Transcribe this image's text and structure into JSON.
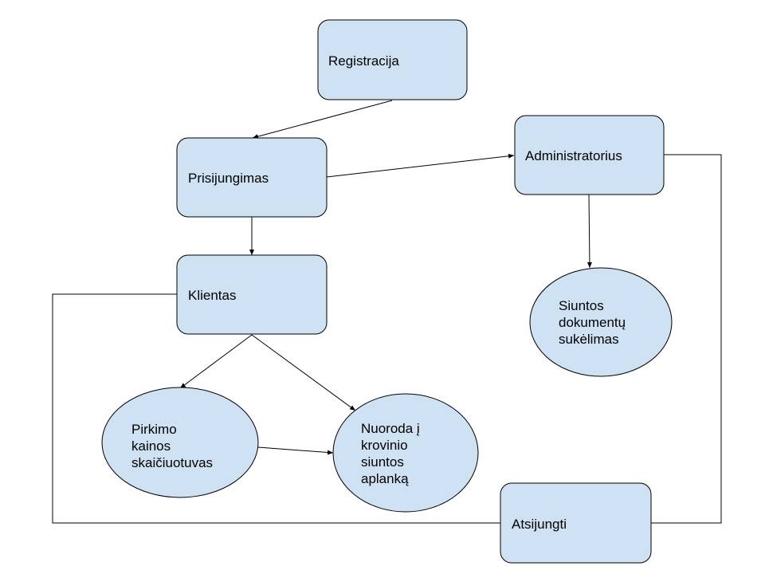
{
  "colors": {
    "node_fill": "#cfe2f3",
    "stroke": "#000000",
    "background": "#ffffff"
  },
  "nodes": {
    "registracija": {
      "label": "Registracija",
      "shape": "rounded-rect"
    },
    "prisijungimas": {
      "label": "Prisijungimas",
      "shape": "rounded-rect"
    },
    "administratorius": {
      "label": "Administratorius",
      "shape": "rounded-rect"
    },
    "klientas": {
      "label": "Klientas",
      "shape": "rounded-rect"
    },
    "siuntos_dokumentu": {
      "lines": [
        "Siuntos",
        "dokumentų",
        "sukėlimas"
      ],
      "shape": "ellipse"
    },
    "pirkimo_kainos": {
      "lines": [
        "Pirkimo",
        "kainos",
        "skaičiuotuvas"
      ],
      "shape": "ellipse"
    },
    "nuoroda": {
      "lines": [
        "Nuoroda į",
        "krovinio",
        "siuntos",
        "aplanką"
      ],
      "shape": "ellipse"
    },
    "atsijungti": {
      "label": "Atsijungti",
      "shape": "rounded-rect"
    }
  },
  "edges": [
    {
      "from": "registracija",
      "to": "prisijungimas",
      "arrow": true
    },
    {
      "from": "prisijungimas",
      "to": "administratorius",
      "arrow": true
    },
    {
      "from": "prisijungimas",
      "to": "klientas",
      "arrow": true
    },
    {
      "from": "administratorius",
      "to": "siuntos_dokumentu",
      "arrow": true
    },
    {
      "from": "klientas",
      "to": "pirkimo_kainos",
      "arrow": true
    },
    {
      "from": "klientas",
      "to": "nuoroda",
      "arrow": true
    },
    {
      "from": "pirkimo_kainos",
      "to": "nuoroda",
      "arrow": true
    },
    {
      "from": "klientas",
      "to": "atsijungti",
      "arrow": false
    },
    {
      "from": "administratorius",
      "to": "atsijungti",
      "arrow": false
    }
  ]
}
